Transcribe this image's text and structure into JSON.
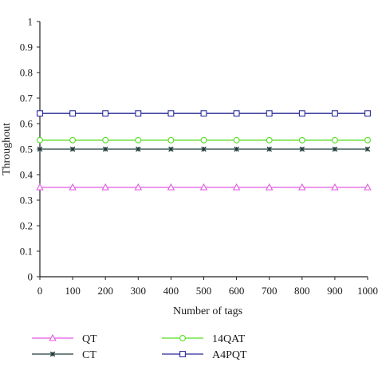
{
  "chart_data": {
    "type": "line",
    "xlabel": "Number of tags",
    "ylabel": "Throughout",
    "xlim": [
      0,
      1000
    ],
    "ylim": [
      0,
      1
    ],
    "x": [
      0,
      100,
      200,
      300,
      400,
      500,
      600,
      700,
      800,
      900,
      1000
    ],
    "x_tick_labels": [
      "0",
      "100",
      "200",
      "300",
      "400",
      "500",
      "600",
      "700",
      "800",
      "900",
      "1000"
    ],
    "y_tick_labels": [
      "0",
      "0.1",
      "0.2",
      "0.3",
      "0.4",
      "0.5",
      "0.6",
      "0.7",
      "0.8",
      "0.9",
      "1"
    ],
    "y_ticks": [
      0,
      0.1,
      0.2,
      0.3,
      0.4,
      0.5,
      0.6,
      0.7,
      0.8,
      0.9,
      1
    ],
    "grid": false,
    "legend_position": "bottom",
    "series": [
      {
        "name": "QT",
        "marker": "triangle",
        "color": "#e05adf",
        "values": [
          0.35,
          0.35,
          0.35,
          0.35,
          0.35,
          0.35,
          0.35,
          0.35,
          0.35,
          0.35,
          0.35
        ]
      },
      {
        "name": "CT",
        "marker": "star",
        "color": "#1f3b3b",
        "values": [
          0.5,
          0.5,
          0.5,
          0.5,
          0.5,
          0.5,
          0.5,
          0.5,
          0.5,
          0.5,
          0.5
        ]
      },
      {
        "name": "14QAT",
        "marker": "circle",
        "color": "#55dd22",
        "values": [
          0.535,
          0.535,
          0.535,
          0.535,
          0.535,
          0.535,
          0.535,
          0.535,
          0.535,
          0.535,
          0.535
        ]
      },
      {
        "name": "A4PQT",
        "marker": "square",
        "color": "#2b2b99",
        "values": [
          0.64,
          0.64,
          0.64,
          0.64,
          0.64,
          0.64,
          0.64,
          0.64,
          0.64,
          0.64,
          0.64
        ]
      }
    ]
  }
}
